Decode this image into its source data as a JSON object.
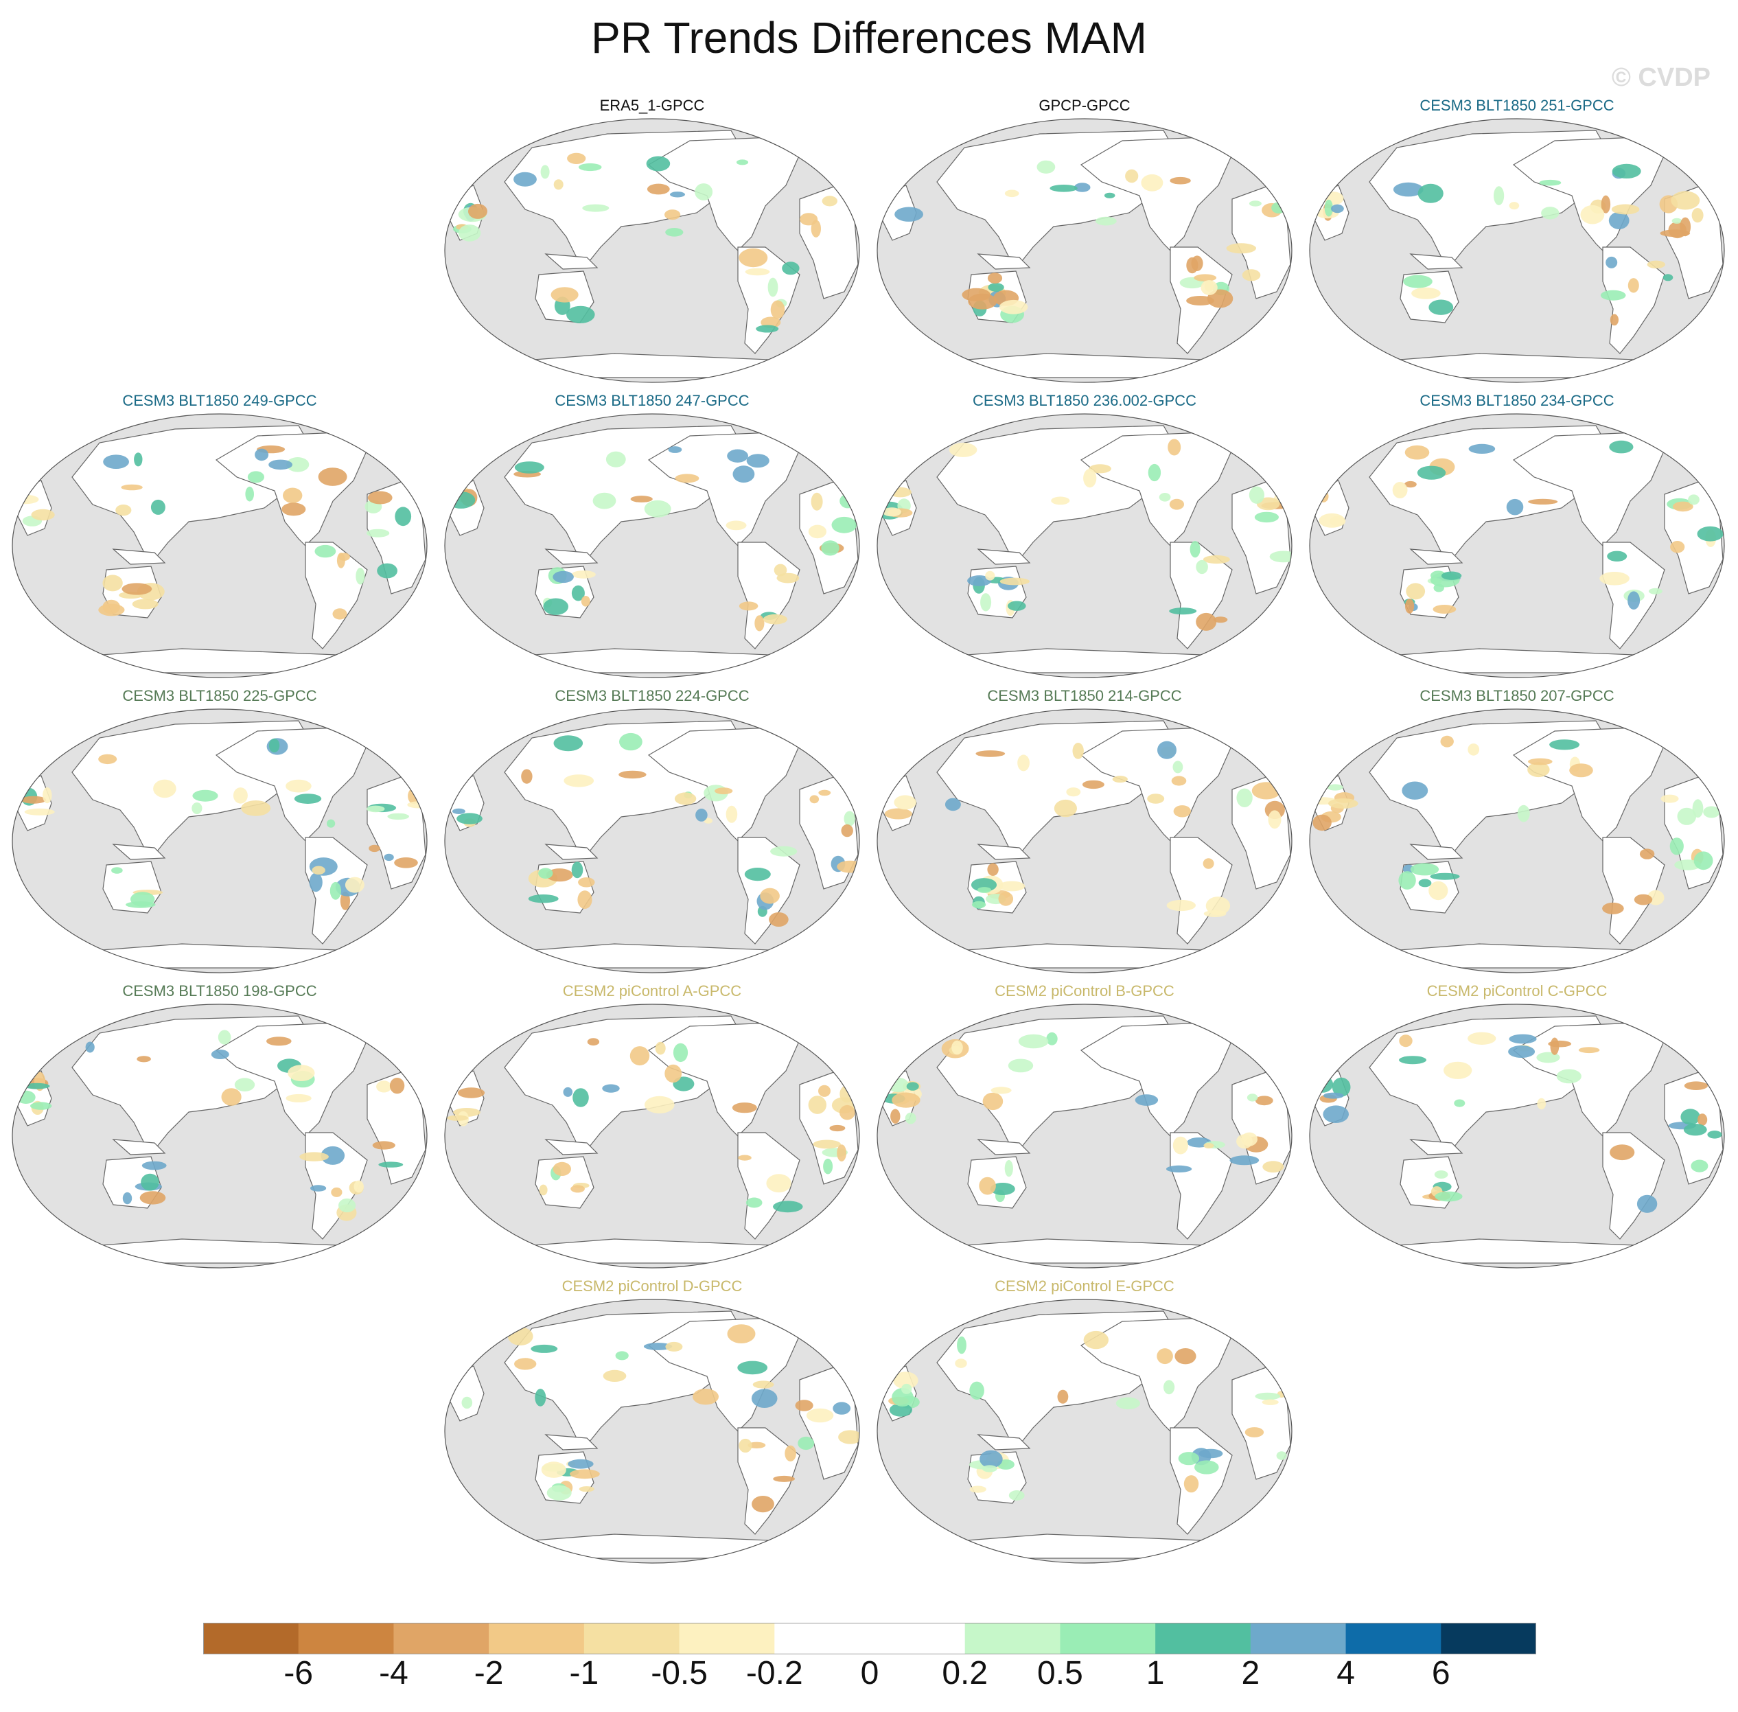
{
  "title": "PR Trends Differences MAM",
  "watermark": "© CVDP",
  "colors": {
    "ocean": "#e2e2e2",
    "land": "#ffffff",
    "coast": "#666666",
    "title_obs": "#111111",
    "title_cesm3_blue": "#1a6a86",
    "title_cesm3_green": "#557a55",
    "title_cesm2": "#c8b86a"
  },
  "chart_data": {
    "type": "heatmap",
    "title": "PR Trends Differences MAM",
    "projection": "Robinson, Pacific-centered",
    "panels": [
      {
        "label": "ERA5_1-GPCC",
        "group": "obs"
      },
      {
        "label": "GPCP-GPCC",
        "group": "obs"
      },
      {
        "label": "CESM3 BLT1850 251-GPCC",
        "group": "cesm3_blue"
      },
      {
        "label": "CESM3 BLT1850 249-GPCC",
        "group": "cesm3_blue"
      },
      {
        "label": "CESM3 BLT1850 247-GPCC",
        "group": "cesm3_blue"
      },
      {
        "label": "CESM3 BLT1850 236.002-GPCC",
        "group": "cesm3_blue"
      },
      {
        "label": "CESM3 BLT1850 234-GPCC",
        "group": "cesm3_blue"
      },
      {
        "label": "CESM3 BLT1850 225-GPCC",
        "group": "cesm3_green"
      },
      {
        "label": "CESM3 BLT1850 224-GPCC",
        "group": "cesm3_green"
      },
      {
        "label": "CESM3 BLT1850 214-GPCC",
        "group": "cesm3_green"
      },
      {
        "label": "CESM3 BLT1850 207-GPCC",
        "group": "cesm3_green"
      },
      {
        "label": "CESM3 BLT1850 198-GPCC",
        "group": "cesm3_green"
      },
      {
        "label": "CESM2 piControl A-GPCC",
        "group": "cesm2"
      },
      {
        "label": "CESM2 piControl B-GPCC",
        "group": "cesm2"
      },
      {
        "label": "CESM2 piControl C-GPCC",
        "group": "cesm2"
      },
      {
        "label": "CESM2 piControl D-GPCC",
        "group": "cesm2"
      },
      {
        "label": "CESM2 piControl E-GPCC",
        "group": "cesm2"
      }
    ],
    "colorbar": {
      "tick_labels": [
        "-6",
        "-4",
        "-2",
        "-1",
        "-0.5",
        "-0.2",
        "0",
        "0.2",
        "0.5",
        "1",
        "2",
        "4",
        "6"
      ],
      "colors": [
        "#b36a2a",
        "#cd8540",
        "#e0a566",
        "#f2c987",
        "#f5e0a2",
        "#fdf1c0",
        "#ffffff",
        "#ffffff",
        "#c6f7c9",
        "#9aedb5",
        "#52bfa0",
        "#6ea9cb",
        "#0e6ca9",
        "#063a5e"
      ]
    }
  }
}
